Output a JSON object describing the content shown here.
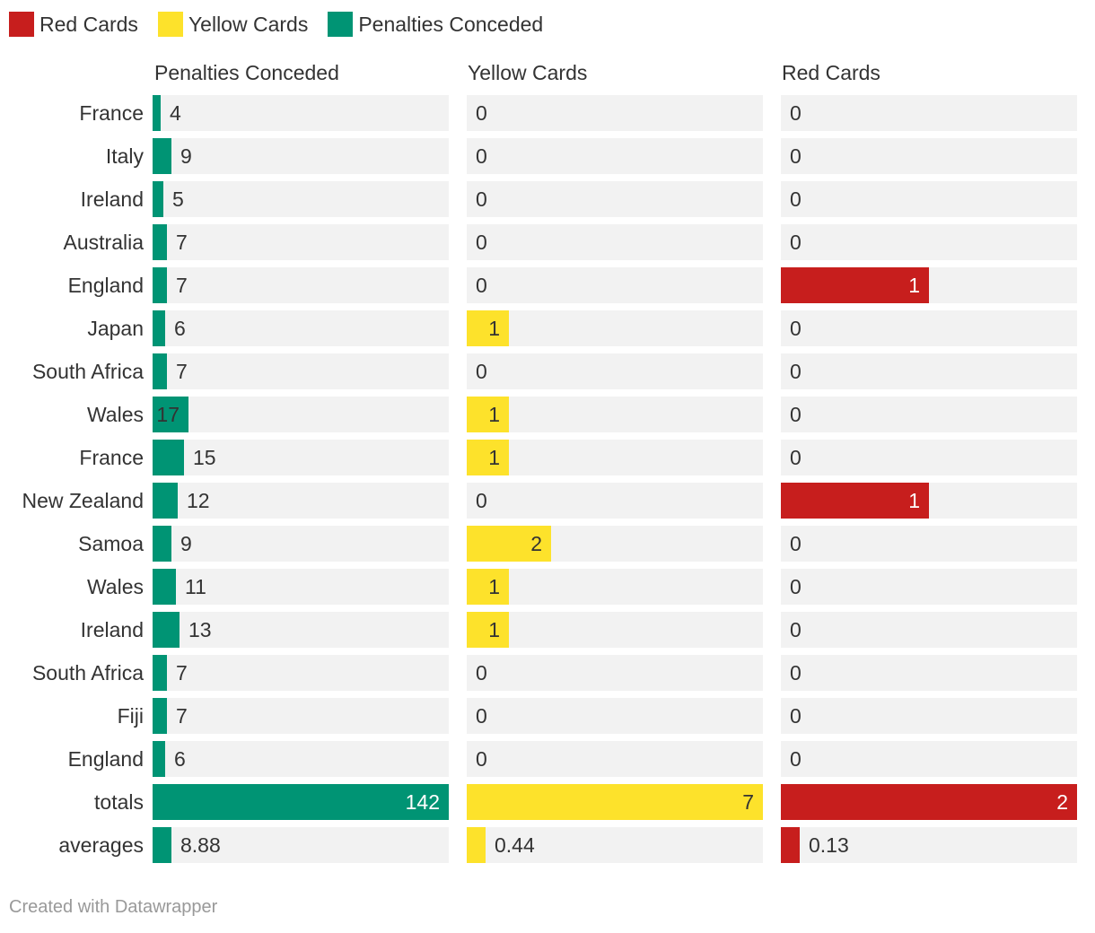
{
  "legend": [
    {
      "label": "Red Cards",
      "color": "#c71e1d"
    },
    {
      "label": "Yellow Cards",
      "color": "#fde22b"
    },
    {
      "label": "Penalties Conceded",
      "color": "#009474"
    }
  ],
  "chart_data": {
    "type": "bar",
    "categories": [
      "France",
      "Italy",
      "Ireland",
      "Australia",
      "England",
      "Japan",
      "South Africa",
      "Wales",
      "France",
      "New Zealand",
      "Samoa",
      "Wales",
      "Ireland",
      "South Africa",
      "Fiji",
      "England",
      "totals",
      "averages"
    ],
    "series": [
      {
        "name": "Penalties Conceded",
        "color": "#009474",
        "values": [
          4,
          9,
          5,
          7,
          7,
          6,
          7,
          17,
          15,
          12,
          9,
          11,
          13,
          7,
          7,
          6,
          142,
          8.88
        ],
        "labels": [
          "4",
          "9",
          "5",
          "7",
          "7",
          "6",
          "7",
          "17",
          "15",
          "12",
          "9",
          "11",
          "13",
          "7",
          "7",
          "6",
          "142",
          "8.88"
        ],
        "max": 142
      },
      {
        "name": "Yellow Cards",
        "color": "#fde22b",
        "values": [
          0,
          0,
          0,
          0,
          0,
          1,
          0,
          1,
          1,
          0,
          2,
          1,
          1,
          0,
          0,
          0,
          7,
          0.44
        ],
        "labels": [
          "0",
          "0",
          "0",
          "0",
          "0",
          "1",
          "0",
          "1",
          "1",
          "0",
          "2",
          "1",
          "1",
          "0",
          "0",
          "0",
          "7",
          "0.44"
        ],
        "max": 7
      },
      {
        "name": "Red Cards",
        "color": "#c71e1d",
        "values": [
          0,
          0,
          0,
          0,
          1,
          0,
          0,
          0,
          0,
          1,
          0,
          0,
          0,
          0,
          0,
          0,
          2,
          0.13
        ],
        "labels": [
          "0",
          "0",
          "0",
          "0",
          "1",
          "0",
          "0",
          "0",
          "0",
          "1",
          "0",
          "0",
          "0",
          "0",
          "0",
          "0",
          "2",
          "0.13"
        ],
        "max": 2
      }
    ],
    "legend_position": "top-left",
    "grid": false
  },
  "footer": "Created with Datawrapper"
}
